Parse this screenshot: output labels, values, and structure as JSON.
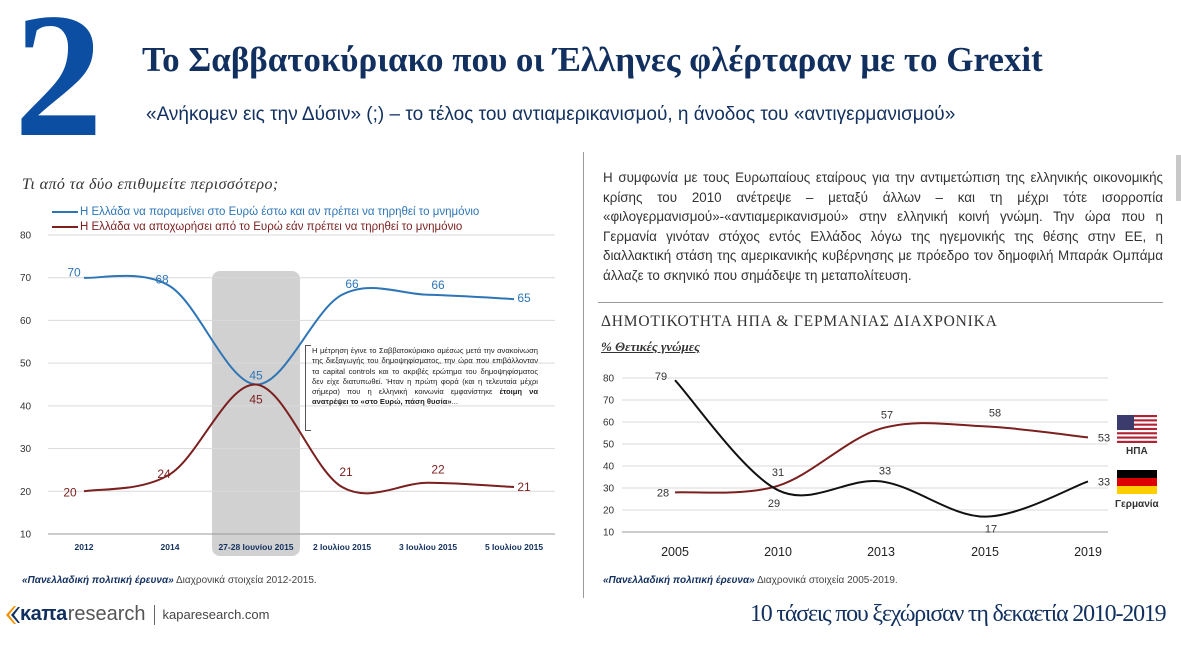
{
  "header": {
    "number": "2",
    "title": "Το Σαββατοκύριακο που οι Έλληνες φλέρταραν με το Grexit",
    "subtitle": "«Ανήκομεν εις την Δύσιν» (;) – το τέλος του αντιαμερικανισμού, η άνοδος του «αντιγερμανισμού»"
  },
  "left_panel": {
    "question": "Τι από τα δύο επιθυμείτε περισσότερο;",
    "note_parts": [
      "Η μέτρηση έγινε το Σαββατοκύριακο αμέσως μετά την ανακοίνωση της διεξαγωγής του δημοψηφίσματος, την ώρα που επιβάλλονταν τα capital controls και το ακριβές ερώτημα του δημοψηφίσματος δεν είχε διατυπωθεί. Ήταν η πρώτη φορά (και η τελευταία μέχρι σήμερα) που η ελληνική κοινωνία εμφανίστηκε ",
      "έτοιμη να ανατρέψει το «στο Ευρώ, πάση θυσία»",
      "..."
    ],
    "source_bold": "«Πανελλαδική πολιτική έρευνα»",
    "source_rest": " Διαχρονικά στοιχεία 2012-2015."
  },
  "right_panel": {
    "paragraph": "Η συμφωνία με τους Ευρωπαίους εταίρους για την αντιμετώπιση της ελληνικής οικονομικής κρίσης του 2010 ανέτρεψε – μεταξύ άλλων – και τη μέχρι τότε ισορροπία «φιλογερμανισμού»-«αντιαμερικανισμού» στην ελληνική κοινή γνώμη. Την ώρα που η Γερμανία γινόταν στόχος εντός Ελλάδος λόγω της ηγεμονικής της θέσης στην ΕΕ, η διαλλακτική στάση της αμερικανικής κυβέρνησης με πρόεδρο τον δημοφιλή Μπαράκ Ομπάμα άλλαζε το σκηνικό που σημάδεψε τη μεταπολίτευση.",
    "chart_title": "ΔΗΜΟΤΙΚΟΤΗΤΑ ΗΠΑ & ΓΕΡΜΑΝΙΑΣ ΔΙΑΧΡΟΝΙΚΑ",
    "chart_subtitle": "% Θετικές γνώμες",
    "source_bold": "«Πανελλαδική πολιτική έρευνα»",
    "source_rest": " Διαχρονικά στοιχεία 2005-2019.",
    "flags": {
      "usa_label": "ΗΠΑ",
      "germany_label": "Γερμανία"
    }
  },
  "footer": {
    "logo_kapa": "κaπa",
    "logo_research": "research",
    "url": "kaparesearch.com",
    "series_title": "10 τάσεις που ξεχώρισαν τη δεκαετία 2010-2019"
  },
  "colors": {
    "blue": "#2e75b6",
    "darkred": "#7b1f1f",
    "navy": "#12305f",
    "black": "#111111",
    "highlight": "#c9c9c9"
  },
  "chart_data": [
    {
      "type": "line",
      "title": "Τι από τα δύο επιθυμείτε περισσότερο;",
      "categories": [
        "2012",
        "2014",
        "27-28 Ιουνίου 2015",
        "2 Ιουλίου 2015",
        "3 Ιουλίου 2015",
        "5 Ιουλίου 2015"
      ],
      "series": [
        {
          "name": "Η Ελλάδα να παραμείνει στο Ευρώ έστω και αν πρέπει να τηρηθεί το μνημόνιο",
          "color": "#2e75b6",
          "values": [
            70,
            68,
            45,
            66,
            66,
            65
          ]
        },
        {
          "name": "Η Ελλάδα να αποχωρήσει από το Ευρώ εάν πρέπει να τηρηθεί το μνημόνιο",
          "color": "#7b1f1f",
          "values": [
            20,
            24,
            45,
            21,
            22,
            21
          ]
        }
      ],
      "ylim": [
        10,
        80
      ],
      "yticks": [
        10,
        20,
        30,
        40,
        50,
        60,
        70,
        80
      ],
      "highlight_category": "27-28 Ιουνίου 2015",
      "grid": true,
      "legend": "top-left"
    },
    {
      "type": "line",
      "title": "ΔΗΜΟΤΙΚΟΤΗΤΑ ΗΠΑ & ΓΕΡΜΑΝΙΑΣ ΔΙΑΧΡΟΝΙΚΑ",
      "subtitle": "% Θετικές γνώμες",
      "categories": [
        "2005",
        "2010",
        "2013",
        "2015",
        "2019"
      ],
      "series": [
        {
          "name": "ΗΠΑ",
          "color": "#7b1f1f",
          "values": [
            28,
            31,
            57,
            58,
            53
          ]
        },
        {
          "name": "Γερμανία",
          "color": "#111111",
          "values": [
            79,
            29,
            33,
            17,
            33
          ]
        }
      ],
      "ylim": [
        10,
        80
      ],
      "yticks": [
        10,
        20,
        30,
        40,
        50,
        60,
        70,
        80
      ],
      "grid": true,
      "legend": "right (flags)"
    }
  ]
}
